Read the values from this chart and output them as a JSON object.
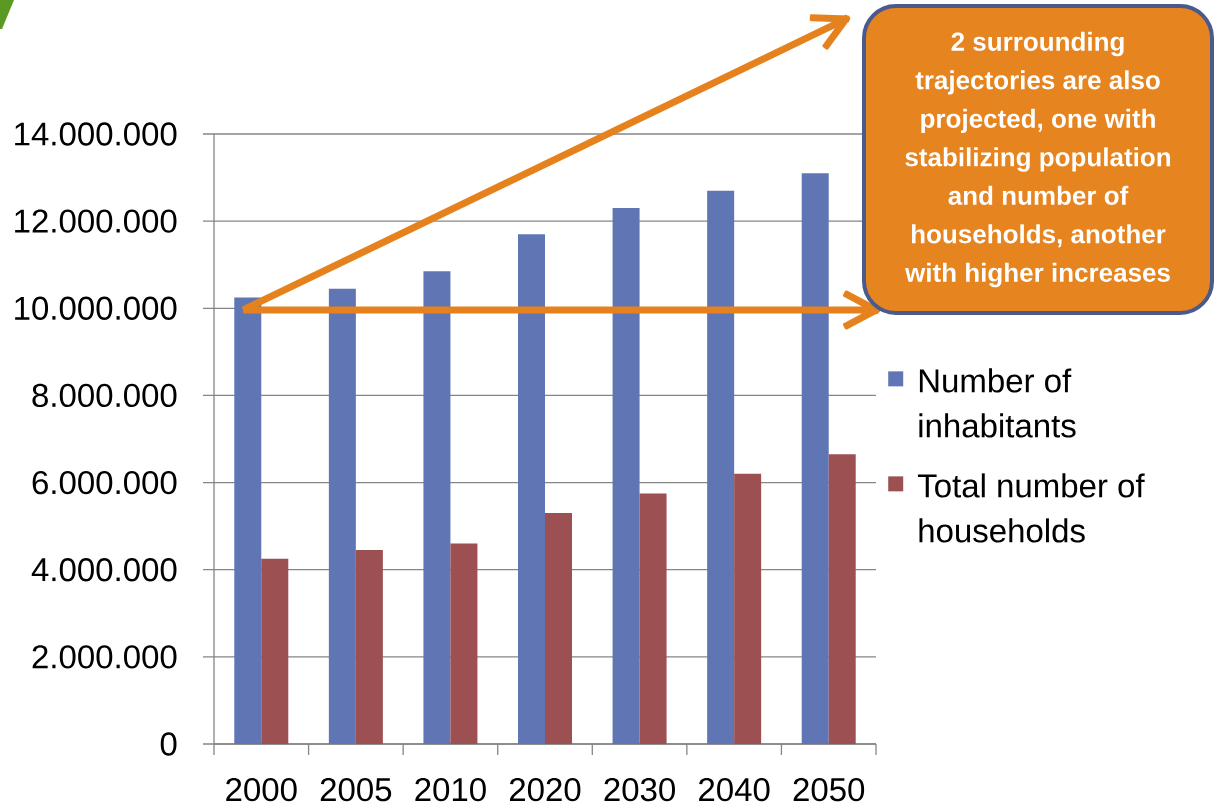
{
  "chart_data": {
    "type": "bar",
    "categories": [
      "2000",
      "2005",
      "2010",
      "2020",
      "2030",
      "2040",
      "2050"
    ],
    "series": [
      {
        "name": "Number of inhabitants",
        "color": "#6076B4",
        "values": [
          10250000,
          10450000,
          10850000,
          11700000,
          12300000,
          12700000,
          13100000
        ]
      },
      {
        "name": "Total number of households",
        "color": "#9C5052",
        "values": [
          4250000,
          4450000,
          4600000,
          5300000,
          5750000,
          6200000,
          6650000
        ]
      }
    ],
    "ylim": [
      0,
      14000000
    ],
    "yticks": [
      0,
      {
        "value": 2000000,
        "label": "2.000.000"
      },
      {
        "value": 4000000,
        "label": "4.000.000"
      },
      {
        "value": 6000000,
        "label": "6.000.000"
      },
      {
        "value": 8000000,
        "label": "8.000.000"
      },
      {
        "value": 10000000,
        "label": "10.000.000"
      },
      {
        "value": 12000000,
        "label": "12.000.000"
      },
      {
        "value": 14000000,
        "label": "14.000.000"
      }
    ],
    "grid": "y",
    "legend": "right",
    "annotations": [
      "2 surrounding trajectories are also projected, one with stabilizing population and number of households, another with higher increases"
    ]
  }
}
